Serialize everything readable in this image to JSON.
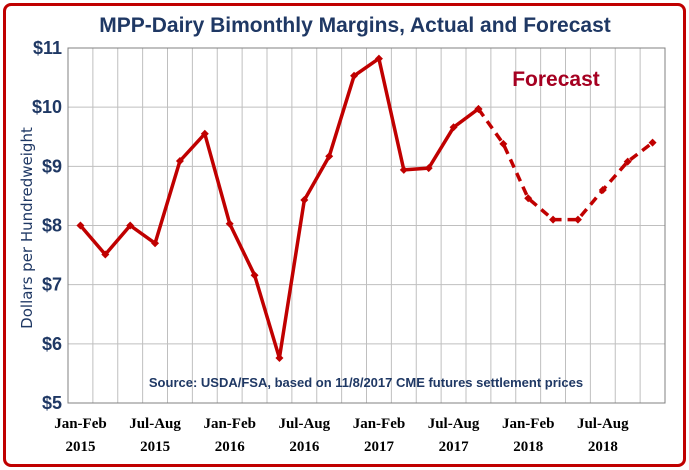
{
  "chart_data": {
    "type": "line",
    "title": "MPP-Dairy Bimonthly Margins, Actual and Forecast",
    "ylabel": "Dollars per Hundredweight",
    "ylim": [
      5,
      11
    ],
    "yticks": [
      "$5",
      "$6",
      "$7",
      "$8",
      "$9",
      "$10",
      "$11"
    ],
    "xtick_labels": [
      {
        "period": "Jan-Feb",
        "year": "2015"
      },
      {
        "period": "Jul-Aug",
        "year": "2015"
      },
      {
        "period": "Jan-Feb",
        "year": "2016"
      },
      {
        "period": "Jul-Aug",
        "year": "2016"
      },
      {
        "period": "Jan-Feb",
        "year": "2017"
      },
      {
        "period": "Jul-Aug",
        "year": "2017"
      },
      {
        "period": "Jan-Feb",
        "year": "2018"
      },
      {
        "period": "Jul-Aug",
        "year": "2018"
      }
    ],
    "grid": true,
    "color": "#c00000",
    "series": [
      {
        "name": "Actual",
        "style": "solid",
        "values": [
          8.0,
          7.51,
          8.0,
          7.7,
          9.09,
          9.55,
          8.03,
          7.16,
          5.76,
          8.43,
          9.17,
          10.53,
          10.82,
          8.94,
          8.97,
          9.66,
          9.97
        ]
      },
      {
        "name": "Forecast",
        "style": "dashed",
        "start_index": 16,
        "values": [
          9.97,
          9.38,
          8.46,
          8.1,
          8.1,
          8.6,
          9.08,
          9.4
        ]
      }
    ],
    "annotations": [
      {
        "text": "Forecast"
      },
      {
        "text": "Source:  USDA/FSA, based on 11/8/2017 CME futures settlement prices"
      }
    ]
  }
}
